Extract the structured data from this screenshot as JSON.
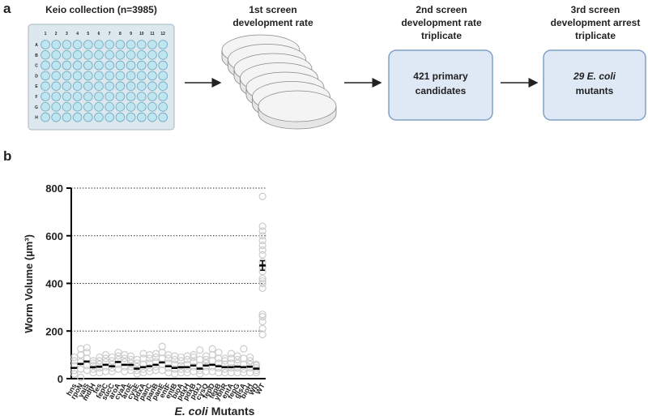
{
  "panel_a": {
    "label": "a",
    "plate_title": "Keio collection (n=3985)",
    "plate_columns": [
      "1",
      "2",
      "3",
      "4",
      "5",
      "6",
      "7",
      "8",
      "9",
      "10",
      "11",
      "12"
    ],
    "plate_rows": [
      "A",
      "B",
      "C",
      "D",
      "E",
      "F",
      "G",
      "H"
    ],
    "step1": [
      "1st screen",
      "development rate"
    ],
    "step2": [
      "2nd screen",
      "development rate",
      "triplicate"
    ],
    "step3": [
      "3rd screen",
      "development arrest",
      "triplicate"
    ],
    "box2": [
      "421 primary",
      "candidates"
    ],
    "box3": {
      "italic": "29 E. coli",
      "rest": "mutants"
    }
  },
  "chart_data": {
    "type": "strip",
    "panel_label": "b",
    "ylabel": "Worm Volume (µm³)",
    "xlabel": {
      "italic": "E. coli",
      "rest": "Mutants"
    },
    "categories": [
      "hns",
      "rpoN",
      "yaiS",
      "mdtH",
      "fes",
      "fepC",
      "sucC",
      "aroA",
      "cyaA",
      "aroE",
      "cysE",
      "pdxA",
      "panC",
      "panB",
      "panE",
      "entF",
      "entB",
      "bioA",
      "pdxH",
      "pdxB",
      "pdxJ",
      "cysQ",
      "fepD",
      "fepB",
      "ybhR",
      "entA",
      "fepG",
      "glsA",
      "bioH",
      "WD",
      "WT"
    ],
    "means": [
      45,
      62,
      72,
      48,
      50,
      58,
      52,
      70,
      58,
      58,
      42,
      48,
      52,
      58,
      68,
      52,
      45,
      48,
      48,
      55,
      42,
      55,
      58,
      52,
      48,
      48,
      50,
      48,
      50,
      42,
      475
    ],
    "errors": [
      null,
      null,
      null,
      null,
      null,
      null,
      null,
      null,
      null,
      null,
      null,
      null,
      null,
      null,
      null,
      null,
      null,
      null,
      null,
      null,
      null,
      null,
      null,
      null,
      null,
      null,
      null,
      null,
      null,
      null,
      20
    ],
    "points": [
      [
        20,
        35,
        55,
        75,
        90
      ],
      [
        5,
        40,
        70,
        100,
        125
      ],
      [
        35,
        55,
        85,
        110,
        130
      ],
      [
        25,
        40,
        55,
        65,
        75
      ],
      [
        25,
        45,
        60,
        75,
        90
      ],
      [
        30,
        50,
        70,
        85,
        100
      ],
      [
        30,
        45,
        60,
        75,
        90
      ],
      [
        40,
        60,
        80,
        95,
        110
      ],
      [
        30,
        50,
        70,
        85,
        100
      ],
      [
        35,
        50,
        65,
        80,
        95
      ],
      [
        20,
        35,
        50,
        65,
        80
      ],
      [
        25,
        40,
        60,
        85,
        105
      ],
      [
        30,
        45,
        65,
        85,
        100
      ],
      [
        35,
        50,
        70,
        90,
        105
      ],
      [
        35,
        60,
        85,
        110,
        135
      ],
      [
        25,
        45,
        65,
        85,
        100
      ],
      [
        20,
        40,
        60,
        80,
        95
      ],
      [
        25,
        40,
        55,
        75,
        90
      ],
      [
        25,
        40,
        60,
        80,
        95
      ],
      [
        30,
        50,
        70,
        90,
        100
      ],
      [
        20,
        35,
        55,
        80,
        120
      ],
      [
        30,
        50,
        65,
        80,
        95
      ],
      [
        30,
        50,
        75,
        100,
        125
      ],
      [
        25,
        45,
        65,
        85,
        110
      ],
      [
        25,
        40,
        60,
        75,
        85
      ],
      [
        25,
        45,
        65,
        85,
        105
      ],
      [
        25,
        45,
        65,
        80,
        95
      ],
      [
        25,
        40,
        60,
        85,
        125
      ],
      [
        25,
        45,
        60,
        75,
        90
      ],
      [
        25,
        35,
        45,
        55,
        60
      ],
      [
        185,
        210,
        240,
        260,
        270,
        380,
        400,
        410,
        420,
        450,
        470,
        490,
        520,
        540,
        560,
        580,
        600,
        620,
        640,
        765
      ]
    ],
    "ylim": [
      0,
      800
    ],
    "yticks": [
      0,
      200,
      400,
      600,
      800
    ],
    "grid": true,
    "point_color": "#cccccc",
    "mean_color": "#000000"
  }
}
